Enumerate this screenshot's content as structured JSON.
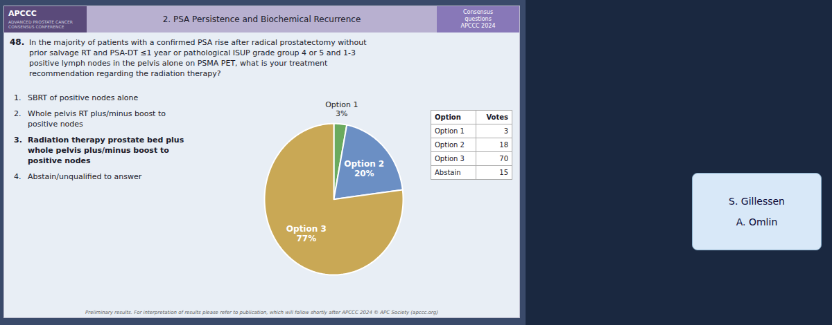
{
  "chart_data": {
    "type": "pie",
    "title": "2. PSA Persistence and Biochemical Recurrence",
    "categories": [
      "Option 1",
      "Option 2",
      "Option 3"
    ],
    "values": [
      3,
      20,
      77
    ],
    "value_labels": [
      "3%",
      "20%",
      "77%"
    ],
    "colors": [
      "#6aaa5e",
      "#6b8fc4",
      "#c9a855"
    ],
    "data_labels": true,
    "annotations": [
      "APCCC",
      "ADVANCED PROSTATE CANCER\nCONSENSUS CONFERENCE",
      "Consensus\nquestions\nAPCCC 2024",
      "48.",
      "In the majority of patients with a confirmed PSA rise after radical prostatectomy without",
      "prior salvage RT and PSA-DT ≤1 year or pathological ISUP grade group 4 or 5 and 1-3",
      "positive lymph nodes in the pelvis alone on PSMA PET, what is your treatment",
      "recommendation regarding the radiation therapy?",
      "1.",
      "SBRT of positive nodes alone",
      "2.",
      "Whole pelvis RT plus/minus boost to",
      "positive nodes",
      "3.",
      "Radiation therapy prostate bed plus",
      "whole pelvis plus/minus boost to",
      "positive nodes",
      "4.",
      "Abstain/unqualified to answer",
      "Preliminary results. For interpretation of results please refer to publication, which will follow shortly after APCCC 2024 © APC Society (apccc.org)",
      "S. Gillessen",
      "A. Omlin"
    ],
    "table": {
      "columns": [
        "Option",
        "Votes"
      ],
      "rows": [
        [
          "Option 1",
          3
        ],
        [
          "Option 2",
          18
        ],
        [
          "Option 3",
          70
        ],
        [
          "Abstain",
          15
        ]
      ]
    }
  }
}
